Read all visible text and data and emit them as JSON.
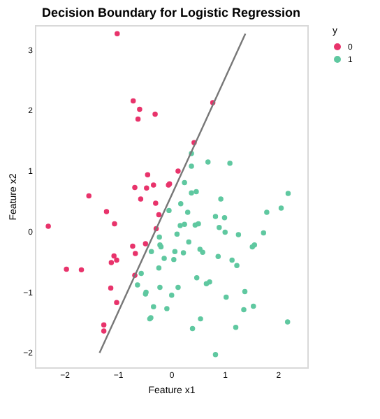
{
  "chart_data": {
    "type": "scatter",
    "title": "Decision Boundary for Logistic Regression",
    "xlabel": "Feature x1",
    "ylabel": "Feature x2",
    "legend_title": "y",
    "legend": "right",
    "marker": "circle",
    "grid": false,
    "xlim": [
      -2.55,
      2.55
    ],
    "ylim": [
      -2.25,
      3.4
    ],
    "xticks": [
      -2,
      -1,
      0,
      1,
      2
    ],
    "yticks": [
      -2,
      -1,
      0,
      1,
      2,
      3
    ],
    "series": [
      {
        "name": "0",
        "color": "#e8336b",
        "x": [
          -1.01,
          -0.71,
          -0.59,
          -0.62,
          -0.3,
          0.78,
          0.43,
          -0.44,
          0.13,
          -0.68,
          -0.46,
          -0.33,
          -0.05,
          -0.03,
          -1.54,
          -0.57,
          -0.29,
          -1.21,
          -0.23,
          -1.06,
          -2.3,
          -0.28,
          -0.72,
          -0.48,
          -0.67,
          -1.07,
          -1.02,
          -1.12,
          -1.96,
          -1.68,
          -0.68,
          -1.13,
          -1.02,
          -1.26,
          -1.26
        ],
        "values": [
          3.26,
          2.15,
          2.01,
          1.85,
          1.93,
          2.12,
          1.46,
          0.93,
          0.99,
          0.72,
          0.71,
          0.76,
          0.76,
          0.78,
          0.58,
          0.53,
          0.46,
          0.32,
          0.27,
          0.12,
          0.08,
          0.04,
          -0.25,
          -0.21,
          -0.37,
          -0.41,
          -0.48,
          -0.52,
          -0.63,
          -0.64,
          -0.73,
          -0.94,
          -1.18,
          -1.55,
          -1.65
        ]
      },
      {
        "name": "1",
        "color": "#5fc8a0",
        "x": [
          0.38,
          0.38,
          0.69,
          1.1,
          0.25,
          0.38,
          0.47,
          0.93,
          0.18,
          -0.04,
          0.31,
          0.83,
          1.0,
          0.17,
          0.25,
          0.45,
          0.51,
          0.9,
          1.01,
          1.26,
          0.11,
          1.79,
          2.06,
          2.19,
          1.73,
          1.56,
          1.52,
          -0.22,
          -0.21,
          -0.19,
          0.33,
          -0.37,
          -0.13,
          0.07,
          0.23,
          0.05,
          0.54,
          0.59,
          0.88,
          1.14,
          1.23,
          -0.23,
          -0.56,
          -0.63,
          -0.21,
          0.13,
          0.48,
          0.66,
          0.72,
          -0.47,
          -0.48,
          0.01,
          1.03,
          1.38,
          -0.33,
          -0.08,
          -0.38,
          -0.4,
          1.36,
          1.54,
          0.55,
          0.4,
          1.21,
          2.18,
          0.83
        ],
        "values": [
          1.28,
          1.07,
          1.14,
          1.12,
          0.8,
          0.63,
          0.65,
          0.53,
          0.45,
          0.34,
          0.31,
          0.24,
          0.22,
          0.09,
          0.11,
          0.1,
          0.12,
          0.06,
          -0.02,
          -0.06,
          -0.05,
          0.31,
          0.38,
          0.62,
          -0.03,
          -0.23,
          -0.26,
          -0.1,
          -0.23,
          -0.26,
          -0.18,
          -0.34,
          -0.45,
          -0.34,
          -0.36,
          -0.47,
          -0.3,
          -0.35,
          -0.42,
          -0.48,
          -0.57,
          -0.61,
          -0.7,
          -0.89,
          -0.93,
          -0.93,
          -0.77,
          -0.87,
          -0.84,
          -1.01,
          -1.04,
          -1.06,
          -1.09,
          -1.0,
          -1.25,
          -1.28,
          -1.43,
          -1.45,
          -1.3,
          -1.24,
          -1.45,
          -1.61,
          -1.59,
          -1.5,
          -2.04
        ]
      },
      {
        "type": "line",
        "marker": "none",
        "line_style": "solid",
        "color": "#777777",
        "x": [
          -1.34,
          1.39
        ],
        "values": [
          -2.01,
          3.26
        ]
      }
    ]
  }
}
